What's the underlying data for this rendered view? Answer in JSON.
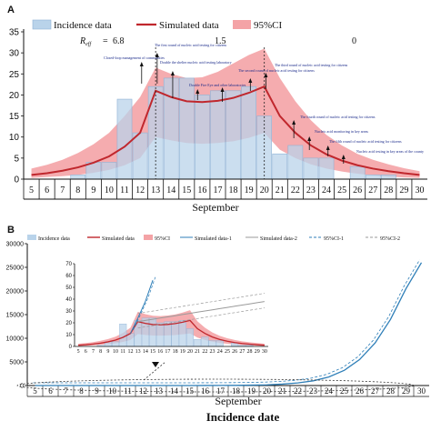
{
  "panel_a": {
    "letter": "A",
    "xlabel": "September",
    "rt_label": "R",
    "rt_sub": "eff",
    "rt_sep": "=",
    "rt_values": [
      "6.8",
      "1.5",
      "0"
    ]
  },
  "panel_b": {
    "letter": "B",
    "xlabel": "September",
    "xlabel2": "Incidence date",
    "inset_xlabel": ""
  },
  "legend_a": [
    "Incidence data",
    "Simulated data",
    "95%CI"
  ],
  "legend_b": [
    "Incidence data",
    "Simulated data",
    "95%CI",
    "Simulated data-1",
    "Simulated data-2",
    "95%CI-1",
    "95%CI-2"
  ],
  "colors": {
    "bar": "#b9d3ea",
    "bar_edge": "#8fb3d6",
    "band": "#f4a3a6",
    "fit": "#c0272d",
    "proj1": "#2f7fb8",
    "proj2": "#9a9a9a"
  },
  "annotations": [
    "Closed-loop management of communities",
    "The first round of nucleic acid testing for citizens",
    "Double the shelter nucleic acid testing laboratory",
    "Double Fire Eye and other laboratories",
    "The second round of nucleic acid testing for citizens",
    "The third round of nucleic acid testing for citizens",
    "The fourth round of nucleic acid testing for citizens",
    "Nucleic acid monitoring in key areas",
    "The fifth round of nucleic acid testing for citizens",
    "Nucleic acid testing in key areas of the county"
  ],
  "chart_data": [
    {
      "type": "bar",
      "panel": "A",
      "categories": [
        "5",
        "6",
        "7",
        "8",
        "9",
        "10",
        "11",
        "12",
        "13",
        "14",
        "15",
        "16",
        "17",
        "18",
        "19",
        "20",
        "21",
        "22",
        "23",
        "24",
        "25",
        "26",
        "27",
        "28",
        "29",
        "30"
      ],
      "xlabel": "September",
      "ylim": [
        0,
        35
      ],
      "yticks": [
        0,
        5,
        10,
        15,
        20,
        25,
        30,
        35
      ],
      "series": [
        {
          "name": "Incidence data",
          "type": "bar",
          "values": [
            0,
            0,
            0,
            1,
            4,
            4,
            19,
            11,
            22,
            24,
            24,
            20,
            21,
            21,
            22,
            15,
            6,
            8,
            5,
            5,
            0,
            3,
            1,
            1,
            0,
            0
          ]
        },
        {
          "name": "Simulated data",
          "type": "line",
          "values": [
            1.0,
            1.4,
            2.0,
            2.8,
            3.9,
            5.4,
            7.7,
            11.0,
            21.0,
            19.5,
            18.5,
            18.3,
            18.6,
            19.3,
            20.5,
            22.0,
            15.0,
            11.0,
            8.0,
            5.9,
            4.4,
            3.3,
            2.5,
            1.9,
            1.4,
            1.0
          ]
        },
        {
          "name": "95%CI",
          "type": "band",
          "lower": [
            0.3,
            0.5,
            0.7,
            1.0,
            1.5,
            2.2,
            3.3,
            5.0,
            10.0,
            9.2,
            8.6,
            8.4,
            8.6,
            9.0,
            9.8,
            11.0,
            7.0,
            5.0,
            3.5,
            2.5,
            1.8,
            1.3,
            0.9,
            0.6,
            0.4,
            0.3
          ],
          "upper": [
            2.5,
            3.4,
            4.6,
            6.2,
            8.3,
            11.0,
            15.0,
            19.5,
            26.5,
            25.0,
            24.0,
            24.2,
            25.5,
            27.5,
            29.5,
            31.0,
            24.0,
            18.5,
            14.0,
            10.5,
            8.0,
            6.0,
            4.6,
            3.5,
            2.6,
            1.9
          ]
        }
      ],
      "rt_annotations": [
        {
          "from": "5",
          "to": "13",
          "value": "6.8"
        },
        {
          "from": "13",
          "to": "20",
          "value": "1.5"
        },
        {
          "from": "20",
          "to": "30",
          "value": "0"
        }
      ],
      "vlines": [
        "13",
        "20"
      ],
      "legend": "top-left",
      "grid": false
    },
    {
      "type": "line",
      "panel": "B",
      "categories": [
        "5",
        "6",
        "7",
        "8",
        "9",
        "10",
        "11",
        "12",
        "13",
        "14",
        "15",
        "16",
        "17",
        "18",
        "19",
        "20",
        "21",
        "22",
        "23",
        "24",
        "25",
        "26",
        "27",
        "28",
        "29",
        "30"
      ],
      "xlabel": "September",
      "xlabel2": "Incidence date",
      "ylim": [
        0,
        30000
      ],
      "yticks": [
        0,
        5000,
        10000,
        15000,
        20000,
        25000,
        30000
      ],
      "series": [
        {
          "name": "Simulated data-1",
          "values": [
            0,
            0,
            0,
            0,
            0,
            0,
            0,
            0,
            0,
            0,
            0,
            10,
            20,
            40,
            80,
            150,
            300,
            550,
            1000,
            1800,
            3200,
            5500,
            9000,
            14000,
            20500,
            26000
          ]
        }
      ],
      "legend": "top",
      "inset": {
        "categories": [
          "5",
          "6",
          "7",
          "8",
          "9",
          "10",
          "11",
          "12",
          "13",
          "14",
          "15",
          "16",
          "17",
          "18",
          "19",
          "20",
          "21",
          "22",
          "23",
          "24",
          "25",
          "26",
          "27",
          "28",
          "29",
          "30"
        ],
        "ylim": [
          0,
          70
        ],
        "yticks": [
          0,
          10,
          20,
          30,
          40,
          50,
          60,
          70
        ],
        "series": [
          {
            "name": "Incidence data",
            "type": "bar",
            "values": [
              0,
              0,
              0,
              1,
              4,
              4,
              19,
              11,
              22,
              24,
              24,
              20,
              21,
              21,
              22,
              15,
              6,
              8,
              5,
              5,
              0,
              3,
              1,
              1,
              0,
              0
            ]
          },
          {
            "name": "Simulated data",
            "type": "line",
            "values": [
              1.0,
              1.4,
              2.0,
              2.8,
              3.9,
              5.4,
              7.7,
              11.0,
              21.0,
              19.5,
              18.5,
              18.3,
              18.6,
              19.3,
              20.5,
              22.0,
              15.0,
              11.0,
              8.0,
              5.9,
              4.4,
              3.3,
              2.5,
              1.9,
              1.4,
              1.0
            ]
          },
          {
            "name": "Simulated data-1",
            "type": "line",
            "from": "12",
            "values": [
              11,
              24,
              38,
              56
            ]
          },
          {
            "name": "Simulated data-2",
            "type": "line",
            "from": "13",
            "values": [
              21,
              22,
              23,
              24,
              25,
              26,
              27,
              28,
              29,
              30,
              31,
              32,
              33,
              34,
              35,
              36,
              37,
              38
            ]
          }
        ]
      }
    }
  ]
}
